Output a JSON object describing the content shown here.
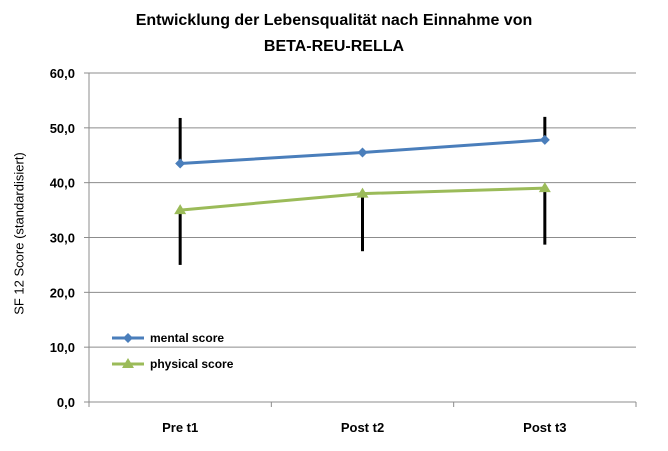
{
  "chart_data": {
    "type": "line",
    "title": [
      "Entwicklung  der Lebensqualität  nach Einnahme  von",
      "BETA-REU-RELLA"
    ],
    "ylabel": "SF 12 Score (standardisiert)",
    "xlabel": "",
    "categories": [
      "Pre t1",
      "Post t2",
      "Post t3"
    ],
    "ylim": [
      0,
      60
    ],
    "yticks": [
      "0,0",
      "10,0",
      "20,0",
      "30,0",
      "40,0",
      "50,0",
      "60,0"
    ],
    "grid": true,
    "legend_position": "bottom-left",
    "series": [
      {
        "name": "mental score",
        "values": [
          43.5,
          45.5,
          47.8
        ],
        "error_up": [
          8.3,
          null,
          4.2
        ],
        "error_down": [
          null,
          null,
          null
        ],
        "color": "#4a7ebb",
        "marker": "diamond"
      },
      {
        "name": "physical score",
        "values": [
          35.0,
          38.0,
          39.0
        ],
        "error_up": [
          null,
          null,
          null
        ],
        "error_down": [
          10.0,
          10.5,
          10.3
        ],
        "color": "#9bbb59",
        "marker": "triangle"
      }
    ]
  }
}
